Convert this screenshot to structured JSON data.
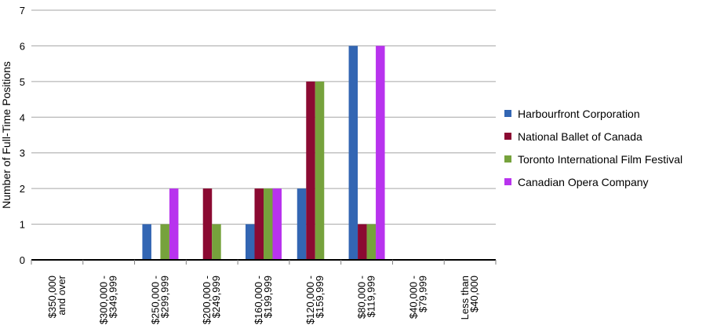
{
  "chart_data": {
    "type": "bar",
    "title": "",
    "xlabel": "",
    "ylabel": "Number of Full-Time Positions",
    "ylim": [
      0,
      7
    ],
    "yticks": [
      0,
      1,
      2,
      3,
      4,
      5,
      6,
      7
    ],
    "grid": "horizontal",
    "legend_position": "right",
    "categories": [
      [
        "$350,000",
        "and over"
      ],
      [
        "$300,000 -",
        "$349,999"
      ],
      [
        "$250,000 -",
        "$299,999"
      ],
      [
        "$200,000 -",
        "$249,999"
      ],
      [
        "$160,000 -",
        "$199,999"
      ],
      [
        "$120,000 -",
        "$159,999"
      ],
      [
        "$80,000 -",
        "$119,999"
      ],
      [
        "$40,000 -",
        "$79,999"
      ],
      [
        "Less than",
        "$40,000"
      ]
    ],
    "series": [
      {
        "name": "Harbourfront Corporation",
        "color": "#3366b3",
        "values": [
          0,
          0,
          1,
          0,
          1,
          2,
          6,
          0,
          0
        ]
      },
      {
        "name": "National Ballet of Canada",
        "color": "#8b0a32",
        "values": [
          0,
          0,
          0,
          2,
          2,
          5,
          1,
          0,
          0
        ]
      },
      {
        "name": "Toronto International Film Festival",
        "color": "#76a23c",
        "values": [
          0,
          0,
          1,
          1,
          2,
          5,
          1,
          0,
          0
        ]
      },
      {
        "name": "Canadian Opera Company",
        "color": "#b833ee",
        "values": [
          0,
          0,
          2,
          0,
          2,
          0,
          6,
          0,
          0
        ]
      }
    ]
  }
}
